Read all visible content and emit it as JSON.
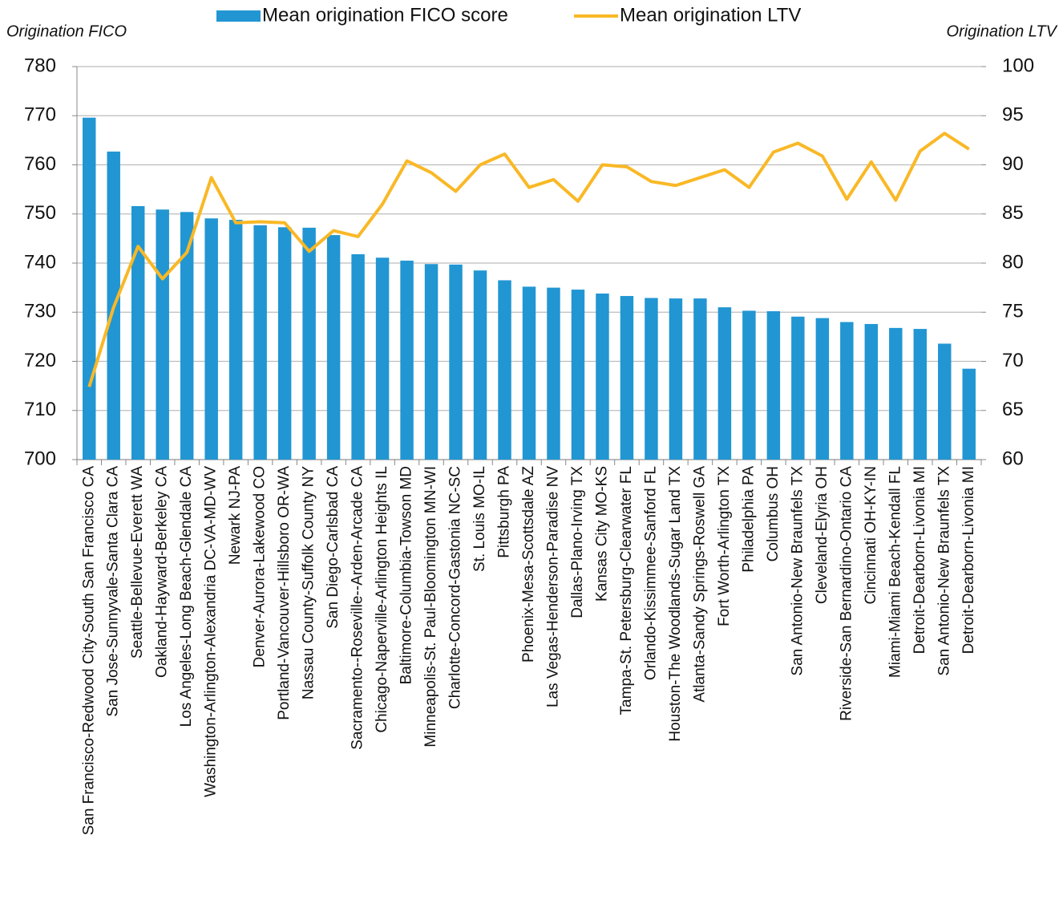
{
  "chart_data": {
    "type": "bar-line",
    "y_label": "Origination FICO",
    "y2_label": "Origination LTV",
    "categories": [
      "San Francisco-Redwood City-South San Francisco CA",
      "San Jose-Sunnyvale-Santa Clara CA",
      "Seattle-Bellevue-Everett WA",
      "Oakland-Hayward-Berkeley CA",
      "Los Angeles-Long Beach-Glendale CA",
      "Washington-Arlington-Alexandria DC-VA-MD-WV",
      "Newark NJ-PA",
      "Denver-Aurora-Lakewood CO",
      "Portland-Vancouver-Hillsboro OR-WA",
      "Nassau County-Suffolk County NY",
      "San Diego-Carlsbad CA",
      "Sacramento--Roseville--Arden-Arcade CA",
      "Chicago-Naperville-Arlington Heights IL",
      "Baltimore-Columbia-Towson MD",
      "Minneapolis-St. Paul-Bloomington MN-WI",
      "Charlotte-Concord-Gastonia NC-SC",
      "St. Louis MO-IL",
      "Pittsburgh PA",
      "Phoenix-Mesa-Scottsdale AZ",
      "Las Vegas-Henderson-Paradise NV",
      "Dallas-Plano-Irving TX",
      "Kansas City MO-KS",
      "Tampa-St. Petersburg-Clearwater FL",
      "Orlando-Kissimmee-Sanford FL",
      "Houston-The Woodlands-Sugar Land TX",
      "Atlanta-Sandy Springs-Roswell GA",
      "Fort Worth-Arlington TX",
      "Philadelphia PA",
      "Columbus OH",
      "San Antonio-New Braunfels TX",
      "Cleveland-Elyria OH",
      "Riverside-San Bernardino-Ontario CA",
      "Cincinnati OH-KY-IN",
      "Miami-Miami Beach-Kendall FL",
      "Detroit-Dearborn-Livonia MI",
      "San Antonio-New Braunfels TX",
      "Detroit-Dearborn-Livonia MI"
    ],
    "series": [
      {
        "name": "Mean origination FICO score",
        "type": "bar",
        "color": "#2196d3",
        "values": [
          769.6,
          762.7,
          751.6,
          750.9,
          750.4,
          749.1,
          748.8,
          747.7,
          747.3,
          747.2,
          745.7,
          741.8,
          741.1,
          740.5,
          739.8,
          739.7,
          738.5,
          736.5,
          735.2,
          735.0,
          734.6,
          733.8,
          733.3,
          732.9,
          732.8,
          732.8,
          731.0,
          730.3,
          730.2,
          729.1,
          728.8,
          728.0,
          727.6,
          726.8,
          726.6,
          723.6,
          718.5
        ]
      },
      {
        "name": "Mean origination LTV",
        "type": "line",
        "axis": "y2",
        "color": "#f9b826",
        "values": [
          67.4,
          75.5,
          81.7,
          78.4,
          81.1,
          88.7,
          84.1,
          84.2,
          84.1,
          81.2,
          83.3,
          82.7,
          86.0,
          90.4,
          89.2,
          87.3,
          90.0,
          91.1,
          87.7,
          88.5,
          86.3,
          90.0,
          89.8,
          88.3,
          87.9,
          88.7,
          89.5,
          87.7,
          91.3,
          92.2,
          90.9,
          86.5,
          90.3,
          86.4,
          91.4,
          93.2,
          91.6
        ]
      }
    ],
    "ylim": [
      700,
      780
    ],
    "yticks": [
      700,
      710,
      720,
      730,
      740,
      750,
      760,
      770,
      780
    ],
    "y2lim": [
      60,
      100
    ],
    "y2ticks": [
      60,
      65,
      70,
      75,
      80,
      85,
      90,
      95,
      100
    ],
    "grid": true
  }
}
